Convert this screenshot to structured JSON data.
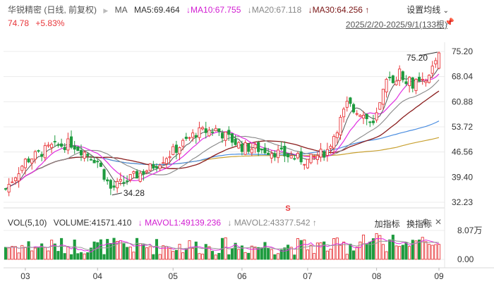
{
  "header": {
    "stock": "华锐精密 (日线, 前复权)",
    "ma_label": "MA",
    "ma5": "MA5:69.464",
    "ma10": "MA10:67.755",
    "ma20": "MA20:67.118",
    "ma30": "MA30:64.256",
    "price": "74.78",
    "change": "+5.83%",
    "date_range": "2025/2/20-2025/9/1(133根)",
    "settings": "设置均线"
  },
  "volume_header": {
    "vol": "VOL(5,10)",
    "volume": "VOLUME:41571.410",
    "mavol1": "MAVOL1:49139.236",
    "mavol2": "MAVOL2:43377.542",
    "add_indicator": "加指标",
    "switch_indicator": "换指标"
  },
  "price_axis": [
    "75.20",
    "68.04",
    "60.88",
    "53.72",
    "46.56",
    "39.40",
    "32.23"
  ],
  "volume_axis": [
    "8.07万",
    "0.00"
  ],
  "months": [
    "03",
    "04",
    "05",
    "06",
    "07",
    "08",
    "09"
  ],
  "annotations": {
    "high": "75.20",
    "low": "34.28",
    "marker": "S"
  },
  "colors": {
    "up": "#e8363a",
    "down": "#1e9b3f",
    "ma5": "#555555",
    "ma10": "#e02de0",
    "ma20": "#888888",
    "ma30": "#8a1c1c",
    "ma60": "#4a8de0",
    "ma120": "#c8a030"
  },
  "icons": {
    "pin": "pin-icon",
    "dropdown": "chevron-down-icon",
    "settings": "gear-icon",
    "close": "close-icon"
  }
}
